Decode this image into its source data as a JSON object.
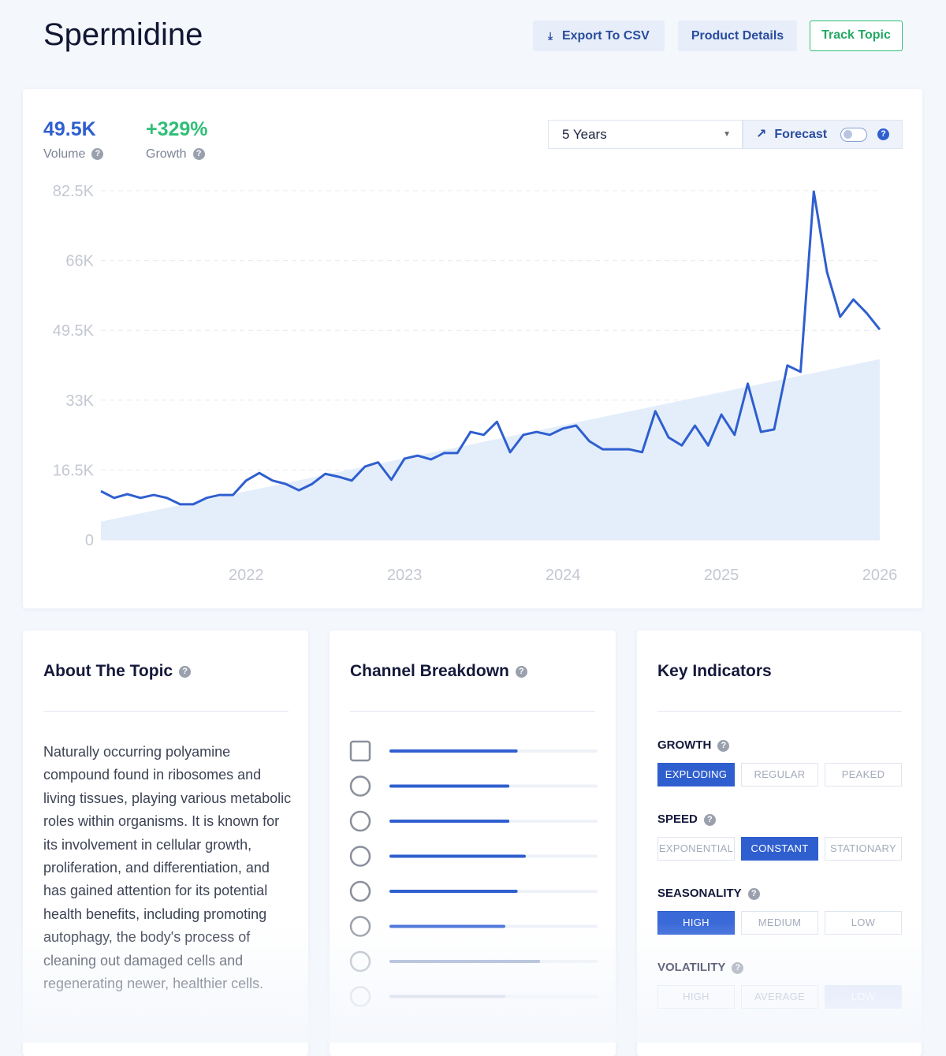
{
  "header": {
    "title": "Spermidine",
    "buttons": [
      "Export To CSV",
      "Product Details",
      "Track Topic"
    ]
  },
  "stats": [
    {
      "value": "49.5K",
      "label": "Volume"
    },
    {
      "value": "+329%",
      "label": "Growth"
    }
  ],
  "controls": {
    "range": "5 Years",
    "forecast": "Forecast"
  },
  "chart_data": {
    "type": "line",
    "categories": [
      null,
      null,
      null,
      null,
      null,
      null,
      null,
      null,
      null,
      null,
      null,
      "2022",
      null,
      null,
      null,
      null,
      null,
      null,
      null,
      null,
      null,
      null,
      null,
      "2023",
      null,
      null,
      null,
      null,
      null,
      null,
      null,
      null,
      null,
      null,
      null,
      "2024",
      null,
      null,
      null,
      null,
      null,
      null,
      null,
      null,
      null,
      null,
      null,
      "2025",
      null,
      null,
      null,
      null,
      null,
      null,
      null,
      null,
      null,
      null,
      null,
      "2026"
    ],
    "series": [
      {
        "color": "#2f5fcf",
        "values": [
          11500,
          9900,
          10800,
          9900,
          10600,
          9900,
          8400,
          8400,
          9900,
          10600,
          10600,
          14000,
          15800,
          14000,
          13200,
          11700,
          13200,
          15600,
          14900,
          14000,
          17300,
          18300,
          14200,
          19200,
          19900,
          19000,
          20500,
          20500,
          25500,
          24800,
          27900,
          20700,
          24800,
          25500,
          24800,
          26300,
          27000,
          23300,
          21400,
          21400,
          21400,
          20700,
          30400,
          24200,
          22300,
          27000,
          22300,
          29600,
          24800,
          36900,
          25500,
          26100,
          41200,
          39700,
          82300,
          63300,
          52700,
          56800,
          53600,
          49700
        ]
      }
    ],
    "trend": {
      "color": "#e4eefb",
      "values": [
        4300,
        42700
      ]
    },
    "ylim": [
      0,
      82500
    ],
    "yticks": [
      0,
      {
        "value": 16500,
        "label": "16.5K"
      },
      {
        "value": 33000,
        "label": "33K"
      },
      {
        "value": 49500,
        "label": "49.5K"
      },
      {
        "value": 66000,
        "label": "66K"
      },
      {
        "value": 82500,
        "label": "82.5K"
      }
    ],
    "grid": true
  },
  "about": {
    "title": "About The Topic",
    "text": "Naturally occurring polyamine compound found in ribosomes and living tissues, playing various metabolic roles within organisms. It is known for its involvement in cellular growth, proliferation, and differentiation, and has gained attention for its potential health benefits, including promoting autophagy, the body's process of cleaning out damaged cells and regenerating newer, healthier cells."
  },
  "channels": {
    "title": "Channel Breakdown",
    "values": [
      61,
      57,
      57,
      65,
      61,
      55,
      72,
      55
    ]
  },
  "indicators": {
    "title": "Key Indicators",
    "groups": [
      {
        "name": "GROWTH",
        "options": [
          "EXPLODING",
          "REGULAR",
          "PEAKED"
        ],
        "selected": 0
      },
      {
        "name": "SPEED",
        "options": [
          "EXPONENTIAL",
          "CONSTANT",
          "STATIONARY"
        ],
        "selected": 1
      },
      {
        "name": "SEASONALITY",
        "options": [
          "HIGH",
          "MEDIUM",
          "LOW"
        ],
        "selected": 0
      },
      {
        "name": "VOLATILITY",
        "options": [
          "HIGH",
          "AVERAGE",
          "LOW"
        ],
        "selected": 2
      }
    ]
  }
}
